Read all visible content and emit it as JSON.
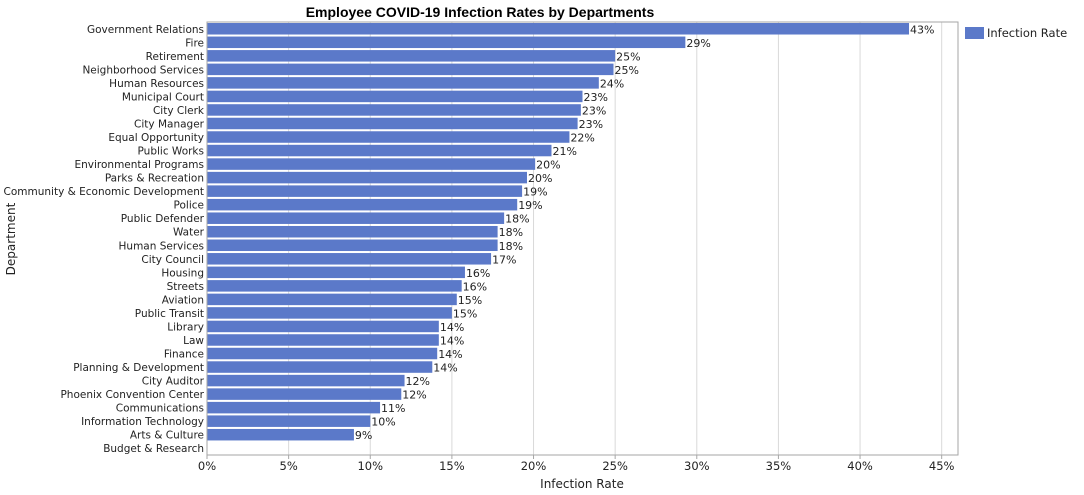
{
  "chart_data": {
    "type": "bar",
    "orientation": "horizontal",
    "title": "Employee COVID-19 Infection Rates by Departments",
    "xlabel": "Infection Rate",
    "ylabel": "Department",
    "xlim": [
      0,
      46
    ],
    "xticks": [
      "0%",
      "5%",
      "10%",
      "15%",
      "20%",
      "25%",
      "30%",
      "35%",
      "40%",
      "45%"
    ],
    "grid": true,
    "legend_position": "top-right",
    "colors": {
      "bar": "#5b79c9",
      "grid": "#d9d9d9",
      "frame": "#a6a6a6"
    },
    "series": [
      {
        "name": "Infection Rate",
        "categories": [
          "Government Relations",
          "Fire",
          "Retirement",
          "Neighborhood Services",
          "Human Resources",
          "Municipal Court",
          "City Clerk",
          "City Manager",
          "Equal Opportunity",
          "Public Works",
          "Environmental Programs",
          "Parks & Recreation",
          "Community & Economic Development",
          "Police",
          "Public Defender",
          "Water",
          "Human Services",
          "City Council",
          "Housing",
          "Streets",
          "Aviation",
          "Public Transit",
          "Library",
          "Law",
          "Finance",
          "Planning & Development",
          "City Auditor",
          "Phoenix Convention Center",
          "Communications",
          "Information Technology",
          "Arts & Culture",
          "Budget & Research"
        ],
        "values": [
          43,
          29.3,
          25,
          24.9,
          24,
          23,
          22.9,
          22.7,
          22.2,
          21.1,
          20.1,
          19.6,
          19.3,
          19,
          18.2,
          17.8,
          17.8,
          17.4,
          15.8,
          15.6,
          15.3,
          15,
          14.2,
          14.2,
          14.1,
          13.8,
          12.1,
          11.9,
          10.6,
          10,
          9,
          0
        ],
        "labels": [
          "43%",
          "29%",
          "25%",
          "25%",
          "24%",
          "23%",
          "23%",
          "23%",
          "22%",
          "21%",
          "20%",
          "20%",
          "19%",
          "19%",
          "18%",
          "18%",
          "18%",
          "17%",
          "16%",
          "16%",
          "15%",
          "15%",
          "14%",
          "14%",
          "14%",
          "14%",
          "12%",
          "12%",
          "11%",
          "10%",
          "9%",
          ""
        ]
      }
    ]
  }
}
